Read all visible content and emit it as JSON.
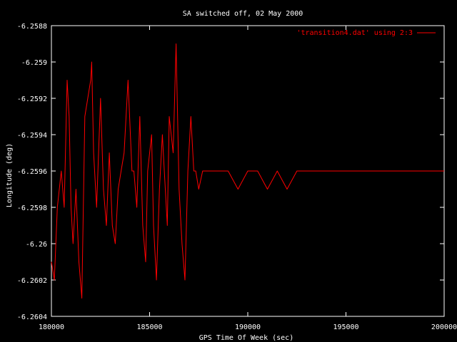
{
  "chart_data": {
    "type": "line",
    "title": "SA switched off, 02 May 2000",
    "xlabel": "GPS Time Of Week (sec)",
    "ylabel": "Longitude (deg)",
    "xlim": [
      180000,
      200000
    ],
    "ylim": [
      -6.2604,
      -6.2588
    ],
    "x_ticks": [
      180000,
      185000,
      190000,
      195000,
      200000
    ],
    "x_tick_labels": [
      "180000",
      "185000",
      "190000",
      "195000",
      "200000"
    ],
    "y_ticks": [
      -6.2588,
      -6.259,
      -6.2592,
      -6.2594,
      -6.2596,
      -6.2598,
      -6.26,
      -6.2602,
      -6.2604
    ],
    "y_tick_labels": [
      "-6.2588",
      "-6.259",
      "-6.2592",
      "-6.2594",
      "-6.2596",
      "-6.2598",
      "-6.26",
      "-6.2602",
      "-6.2604"
    ],
    "grid": false,
    "legend_position": "top-right",
    "series": [
      {
        "name": "'transition4.dat' using 2:3",
        "color": "#ff0000",
        "x": [
          180000,
          180150,
          180300,
          180500,
          180650,
          180800,
          180900,
          181000,
          181100,
          181250,
          181400,
          181550,
          181700,
          181850,
          182000,
          182050,
          182150,
          182300,
          182500,
          182650,
          182800,
          182950,
          183100,
          183250,
          183400,
          183550,
          183700,
          183900,
          184100,
          184200,
          184350,
          184500,
          184650,
          184800,
          184900,
          185100,
          185200,
          185350,
          185500,
          185650,
          185750,
          185900,
          186000,
          186200,
          186350,
          186500,
          186650,
          186800,
          186950,
          187100,
          187250,
          187350,
          187500,
          187700,
          187900,
          188200,
          188600,
          189000,
          189500,
          190000,
          190500,
          191000,
          191500,
          192000,
          192500,
          193000,
          193500,
          194000,
          194500,
          195000,
          195500,
          196000,
          196500,
          197000,
          197500,
          198000,
          198500,
          199000,
          199500,
          200000
        ],
        "y": [
          -6.2601,
          -6.2602,
          -6.2598,
          -6.2596,
          -6.2598,
          -6.2591,
          -6.2593,
          -6.2598,
          -6.26,
          -6.2597,
          -6.2601,
          -6.2603,
          -6.2593,
          -6.2592,
          -6.2591,
          -6.259,
          -6.2595,
          -6.2598,
          -6.2592,
          -6.2597,
          -6.2599,
          -6.2595,
          -6.2599,
          -6.26,
          -6.2597,
          -6.2596,
          -6.2595,
          -6.2591,
          -6.2596,
          -6.2596,
          -6.2598,
          -6.2593,
          -6.2599,
          -6.2601,
          -6.2596,
          -6.2594,
          -6.2599,
          -6.2602,
          -6.2597,
          -6.2594,
          -6.2596,
          -6.2599,
          -6.2593,
          -6.2595,
          -6.2589,
          -6.2597,
          -6.26,
          -6.2602,
          -6.2596,
          -6.2593,
          -6.2596,
          -6.2596,
          -6.2597,
          -6.2596,
          -6.2596,
          -6.2596,
          -6.2596,
          -6.2596,
          -6.2597,
          -6.2596,
          -6.2596,
          -6.2597,
          -6.2596,
          -6.2597,
          -6.2596,
          -6.2596,
          -6.2596,
          -6.2596,
          -6.2596,
          -6.2596,
          -6.2596,
          -6.2596,
          -6.2596,
          -6.2596,
          -6.2596,
          -6.2596,
          -6.2596,
          -6.2596,
          -6.2596,
          -6.2596
        ]
      }
    ]
  }
}
